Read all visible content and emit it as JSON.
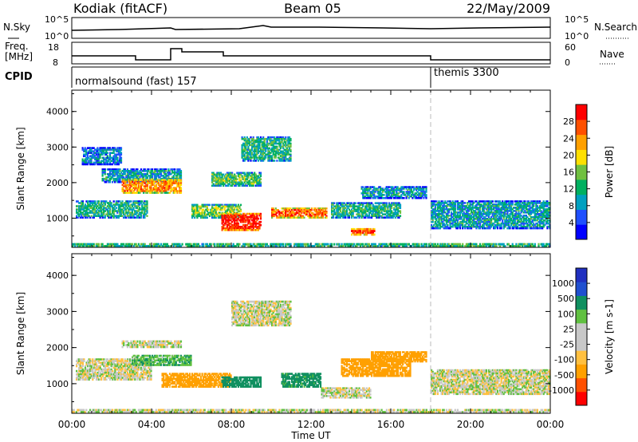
{
  "header": {
    "title": "Kodiak (fitACF)",
    "beam": "Beam 05",
    "date": "22/May/2009"
  },
  "summary": {
    "left_label_top": "N.Sky",
    "sky_ticks": [
      "10^5",
      "10^0"
    ],
    "right_label_top": "N.Search",
    "search_ticks": [
      "10^5",
      "10^0"
    ],
    "freq_label_line1": "Freq.",
    "freq_label_line2": "[MHz]",
    "freq_ticks": [
      "18",
      "8"
    ],
    "nave_label": "Nave",
    "nave_ticks": [
      "60",
      "0"
    ],
    "cpid_label": "CPID",
    "cpid_segments": [
      {
        "label": "normalsound (fast) 157",
        "start_hour": 0
      },
      {
        "label": "themis 3300",
        "start_hour": 18
      }
    ],
    "colors": {
      "line": "#000000"
    }
  },
  "chart_data": [
    {
      "type": "heatmap",
      "title": "",
      "xlabel": "Time UT",
      "ylabel": "Slant Range [km]",
      "xlim": [
        0,
        24
      ],
      "ylim": [
        180,
        4600
      ],
      "x_ticks": [
        "00:00",
        "04:00",
        "08:00",
        "12:00",
        "16:00",
        "20:00",
        "00:00"
      ],
      "y_ticks": [
        "1000",
        "2000",
        "3000",
        "4000"
      ],
      "colorbar": {
        "label": "Power [dB]",
        "ticks": [
          "28",
          "24",
          "20",
          "16",
          "12",
          "8",
          "4"
        ],
        "colors": [
          "#0000ff",
          "#2050ff",
          "#00a0c0",
          "#00b060",
          "#70c040",
          "#ffe000",
          "#ffa000",
          "#ff5000",
          "#ff0000"
        ]
      },
      "regions": [
        {
          "t0": 0.2,
          "t1": 3.8,
          "r0": 1000,
          "r1": 1500,
          "level": 12
        },
        {
          "t0": 1.5,
          "t1": 5.5,
          "r0": 2000,
          "r1": 2400,
          "level": 10
        },
        {
          "t0": 2.5,
          "t1": 5.5,
          "r0": 1700,
          "r1": 2100,
          "level": 24
        },
        {
          "t0": 0.5,
          "t1": 2.5,
          "r0": 2500,
          "r1": 3000,
          "level": 8
        },
        {
          "t0": 6.0,
          "t1": 8.5,
          "r0": 1000,
          "r1": 1400,
          "level": 16
        },
        {
          "t0": 7.5,
          "t1": 9.5,
          "r0": 650,
          "r1": 1150,
          "level": 30
        },
        {
          "t0": 10.0,
          "t1": 12.8,
          "r0": 1000,
          "r1": 1300,
          "level": 26
        },
        {
          "t0": 8.5,
          "t1": 11.0,
          "r0": 2600,
          "r1": 3300,
          "level": 12
        },
        {
          "t0": 7.0,
          "t1": 9.5,
          "r0": 1900,
          "r1": 2300,
          "level": 14
        },
        {
          "t0": 13.0,
          "t1": 16.5,
          "r0": 1000,
          "r1": 1450,
          "level": 12
        },
        {
          "t0": 14.0,
          "t1": 15.2,
          "r0": 520,
          "r1": 720,
          "level": 28
        },
        {
          "t0": 14.5,
          "t1": 17.8,
          "r0": 1550,
          "r1": 1900,
          "level": 10
        },
        {
          "t0": 18.0,
          "t1": 24.0,
          "r0": 700,
          "r1": 1500,
          "level": 10
        },
        {
          "t0": 0.0,
          "t1": 24.0,
          "r0": 190,
          "r1": 300,
          "level": 18
        }
      ]
    },
    {
      "type": "heatmap",
      "title": "",
      "xlabel": "Time UT",
      "ylabel": "Slant Range [km]",
      "xlim": [
        0,
        24
      ],
      "ylim": [
        180,
        4600
      ],
      "x_ticks": [
        "00:00",
        "04:00",
        "08:00",
        "12:00",
        "16:00",
        "20:00",
        "00:00"
      ],
      "y_ticks": [
        "1000",
        "2000",
        "3000",
        "4000"
      ],
      "colorbar": {
        "label": "Velocity [m s-1]",
        "ticks": [
          "1000",
          "500",
          "100",
          "25",
          "-25",
          "-100",
          "-500",
          "-1000"
        ],
        "colors": [
          "#ff0000",
          "#ff5000",
          "#ffa000",
          "#ffc040",
          "#c8c8c8",
          "#c8c8c8",
          "#60c040",
          "#109060",
          "#2050d0",
          "#2030c0"
        ]
      },
      "regions": [
        {
          "t0": 0.2,
          "t1": 4.0,
          "r0": 1100,
          "r1": 1700,
          "value": 0
        },
        {
          "t0": 2.5,
          "t1": 5.5,
          "r0": 2000,
          "r1": 2200,
          "value": 0
        },
        {
          "t0": 3.0,
          "t1": 6.0,
          "r0": 1500,
          "r1": 1800,
          "value": 80
        },
        {
          "t0": 4.5,
          "t1": 8.0,
          "r0": 900,
          "r1": 1300,
          "value": -150
        },
        {
          "t0": 7.5,
          "t1": 9.5,
          "r0": 900,
          "r1": 1200,
          "value": 200
        },
        {
          "t0": 8.0,
          "t1": 11.0,
          "r0": 2600,
          "r1": 3300,
          "value": 0
        },
        {
          "t0": 10.5,
          "t1": 12.5,
          "r0": 900,
          "r1": 1300,
          "value": 150
        },
        {
          "t0": 12.5,
          "t1": 15.0,
          "r0": 600,
          "r1": 900,
          "value": 0
        },
        {
          "t0": 13.5,
          "t1": 17.0,
          "r0": 1200,
          "r1": 1700,
          "value": -200
        },
        {
          "t0": 15.0,
          "t1": 17.8,
          "r0": 1600,
          "r1": 1900,
          "value": -300
        },
        {
          "t0": 18.0,
          "t1": 24.0,
          "r0": 700,
          "r1": 1400,
          "value": 0
        },
        {
          "t0": 0.0,
          "t1": 24.0,
          "r0": 190,
          "r1": 300,
          "value": 0
        }
      ]
    }
  ]
}
